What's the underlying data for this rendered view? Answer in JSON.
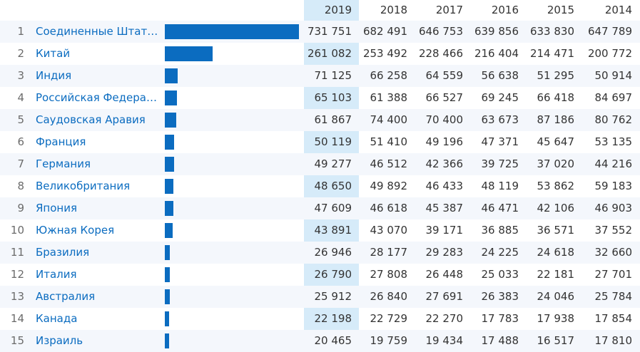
{
  "years": [
    "2019",
    "2018",
    "2017",
    "2016",
    "2015",
    "2014"
  ],
  "max_value": 731751,
  "rows": [
    {
      "rank": "1",
      "country": "Соединенные Штаты Америки",
      "v": [
        "731 751",
        "682 491",
        "646 753",
        "639 856",
        "633 830",
        "647 789"
      ],
      "value": 731751
    },
    {
      "rank": "2",
      "country": "Китай",
      "v": [
        "261 082",
        "253 492",
        "228 466",
        "216 404",
        "214 471",
        "200 772"
      ],
      "value": 261082
    },
    {
      "rank": "3",
      "country": "Индия",
      "v": [
        "71 125",
        "66 258",
        "64 559",
        "56 638",
        "51 295",
        "50 914"
      ],
      "value": 71125
    },
    {
      "rank": "4",
      "country": "Российская Федерация",
      "v": [
        "65 103",
        "61 388",
        "66 527",
        "69 245",
        "66 418",
        "84 697"
      ],
      "value": 65103
    },
    {
      "rank": "5",
      "country": "Саудовская Аравия",
      "v": [
        "61 867",
        "74 400",
        "70 400",
        "63 673",
        "87 186",
        "80 762"
      ],
      "value": 61867
    },
    {
      "rank": "6",
      "country": "Франция",
      "v": [
        "50 119",
        "51 410",
        "49 196",
        "47 371",
        "45 647",
        "53 135"
      ],
      "value": 50119
    },
    {
      "rank": "7",
      "country": "Германия",
      "v": [
        "49 277",
        "46 512",
        "42 366",
        "39 725",
        "37 020",
        "44 216"
      ],
      "value": 49277
    },
    {
      "rank": "8",
      "country": "Великобритания",
      "v": [
        "48 650",
        "49 892",
        "46 433",
        "48 119",
        "53 862",
        "59 183"
      ],
      "value": 48650
    },
    {
      "rank": "9",
      "country": "Япония",
      "v": [
        "47 609",
        "46 618",
        "45 387",
        "46 471",
        "42 106",
        "46 903"
      ],
      "value": 47609
    },
    {
      "rank": "10",
      "country": "Южная Корея",
      "v": [
        "43 891",
        "43 070",
        "39 171",
        "36 885",
        "36 571",
        "37 552"
      ],
      "value": 43891
    },
    {
      "rank": "11",
      "country": "Бразилия",
      "v": [
        "26 946",
        "28 177",
        "29 283",
        "24 225",
        "24 618",
        "32 660"
      ],
      "value": 26946
    },
    {
      "rank": "12",
      "country": "Италия",
      "v": [
        "26 790",
        "27 808",
        "26 448",
        "25 033",
        "22 181",
        "27 701"
      ],
      "value": 26790
    },
    {
      "rank": "13",
      "country": "Австралия",
      "v": [
        "25 912",
        "26 840",
        "27 691",
        "26 383",
        "24 046",
        "25 784"
      ],
      "value": 25912
    },
    {
      "rank": "14",
      "country": "Канада",
      "v": [
        "22 198",
        "22 729",
        "22 270",
        "17 783",
        "17 938",
        "17 854"
      ],
      "value": 22198
    },
    {
      "rank": "15",
      "country": "Израиль",
      "v": [
        "20 465",
        "19 759",
        "19 434",
        "17 488",
        "16 517",
        "17 810"
      ],
      "value": 20465
    }
  ],
  "colors": {
    "link": "#0b6cc0",
    "bar": "#0b6cc0",
    "highlight_column": "#d6ebf9",
    "stripe": "#f4f7fc"
  }
}
